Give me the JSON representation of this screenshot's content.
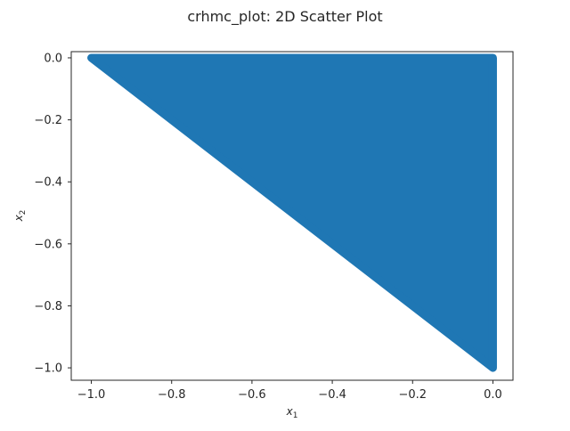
{
  "chart_data": {
    "type": "scatter",
    "title": "crhmc_plot: 2D Scatter Plot",
    "xlabel": "x",
    "xlabel_sub": "1",
    "ylabel": "x",
    "ylabel_sub": "2",
    "xlim": [
      -1.05,
      0.05
    ],
    "ylim": [
      -1.04,
      0.02
    ],
    "xticks": [
      -1.0,
      -0.8,
      -0.6,
      -0.4,
      -0.2,
      0.0
    ],
    "xtick_labels": [
      "−1.0",
      "−0.8",
      "−0.6",
      "−0.4",
      "−0.2",
      "0.0"
    ],
    "yticks": [
      0.0,
      -0.2,
      -0.4,
      -0.6,
      -0.8,
      -1.0
    ],
    "ytick_labels": [
      "0.0",
      "−0.2",
      "−0.4",
      "−0.6",
      "−0.8",
      "−1.0"
    ],
    "grid": false,
    "series": [
      {
        "color": "#1f77b4",
        "region": "triangle with vertices (-1, 0), (0, 0), (0, -1)",
        "vertices": [
          [
            -1.0,
            0.0
          ],
          [
            0.0,
            0.0
          ],
          [
            0.0,
            -1.0
          ]
        ]
      }
    ]
  }
}
